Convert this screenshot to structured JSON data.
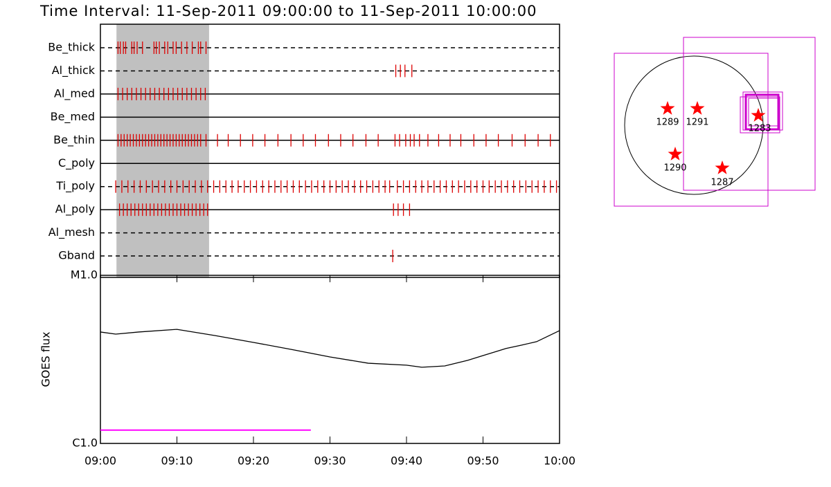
{
  "chart_data": [
    {
      "type": "event",
      "title": "Time Interval: 11-Sep-2011 09:00:00 to 11-Sep-2011 10:00:00",
      "xlim": [
        0,
        60
      ],
      "highlight": [
        2.1,
        14.2
      ],
      "series": [
        {
          "name": "Be_thick",
          "color": "#dd0000",
          "dashed": true,
          "x": [
            2.3,
            2.6,
            3.0,
            3.3,
            4.1,
            4.4,
            4.8,
            5.5,
            7.0,
            7.3,
            7.7,
            8.4,
            8.8,
            9.5,
            9.9,
            10.6,
            11.3,
            12.0,
            12.8,
            13.1,
            13.8
          ]
        },
        {
          "name": "Al_thick",
          "color": "#dd0000",
          "dashed": true,
          "x": [
            38.6,
            39.2,
            39.8,
            40.7
          ]
        },
        {
          "name": "Al_med",
          "color": "#dd0000",
          "dashed": false,
          "x": [
            2.3,
            2.9,
            3.5,
            4.1,
            4.7,
            5.3,
            5.9,
            6.5,
            7.1,
            7.7,
            8.3,
            8.9,
            9.5,
            10.1,
            10.7,
            11.3,
            11.9,
            12.5,
            13.1,
            13.7
          ]
        },
        {
          "name": "Be_med",
          "color": "#dd0000",
          "dashed": false,
          "x": []
        },
        {
          "name": "Be_thin",
          "color": "#dd0000",
          "dashed": false,
          "x": [
            2.3,
            2.7,
            3.1,
            3.5,
            3.9,
            4.3,
            4.7,
            5.1,
            5.5,
            5.9,
            6.3,
            6.7,
            7.1,
            7.5,
            7.9,
            8.3,
            8.7,
            9.1,
            9.5,
            9.9,
            10.3,
            10.7,
            11.1,
            11.5,
            11.9,
            12.3,
            12.7,
            13.1,
            13.8,
            15.3,
            16.7,
            18.3,
            19.9,
            21.5,
            23.2,
            24.9,
            26.5,
            28.1,
            29.8,
            31.4,
            33.0,
            34.7,
            36.3,
            38.5,
            39.1,
            39.9,
            40.5,
            41.0,
            41.7,
            42.8,
            44.2,
            45.7,
            47.1,
            48.8,
            50.4,
            52.0,
            53.8,
            55.5,
            57.2,
            58.8
          ]
        },
        {
          "name": "C_poly",
          "color": "#dd0000",
          "dashed": false,
          "x": []
        },
        {
          "name": "Ti_poly",
          "color": "#dd0000",
          "dashed": true,
          "x": [
            2.0,
            2.8,
            3.6,
            4.4,
            5.2,
            6.0,
            6.8,
            7.6,
            8.4,
            9.2,
            10.0,
            10.8,
            11.6,
            12.4,
            13.2,
            14.0,
            14.8,
            15.6,
            16.4,
            17.2,
            18.0,
            18.8,
            19.6,
            20.4,
            21.2,
            22.0,
            22.8,
            23.6,
            24.4,
            25.2,
            26.0,
            26.8,
            27.6,
            28.4,
            29.2,
            30.0,
            30.8,
            31.6,
            32.4,
            33.2,
            34.0,
            34.8,
            35.6,
            36.4,
            37.2,
            37.8,
            38.8,
            39.6,
            40.4,
            41.2,
            42.0,
            42.8,
            43.6,
            44.4,
            45.2,
            46.0,
            46.8,
            47.6,
            48.4,
            49.2,
            50.0,
            50.8,
            51.6,
            52.4,
            53.2,
            54.0,
            54.8,
            55.6,
            56.4,
            57.2,
            58.0,
            58.8,
            59.6
          ]
        },
        {
          "name": "Al_poly",
          "color": "#dd0000",
          "dashed": false,
          "x": [
            2.5,
            3.0,
            3.5,
            4.0,
            4.5,
            5.0,
            5.5,
            6.0,
            6.5,
            7.0,
            7.5,
            8.0,
            8.5,
            9.0,
            9.5,
            10.0,
            10.5,
            11.0,
            11.5,
            12.0,
            12.5,
            13.0,
            13.5,
            14.0,
            38.3,
            38.9,
            39.6,
            40.4
          ]
        },
        {
          "name": "Al_mesh",
          "color": "#dd0000",
          "dashed": true,
          "x": []
        },
        {
          "name": "Gband",
          "color": "#dd0000",
          "dashed": true,
          "x": [
            38.2
          ]
        }
      ]
    },
    {
      "type": "line",
      "y_label": "GOES flux",
      "log_scale": true,
      "xlim": [
        0,
        60
      ],
      "xticks": [
        {
          "value": 0,
          "label": "09:00"
        },
        {
          "value": 10,
          "label": "09:10"
        },
        {
          "value": 20,
          "label": "09:20"
        },
        {
          "value": 30,
          "label": "09:30"
        },
        {
          "value": 40,
          "label": "09:40"
        },
        {
          "value": 50,
          "label": "09:50"
        },
        {
          "value": 60,
          "label": "10:00"
        }
      ],
      "ylim": [
        1e-06,
        1e-05
      ],
      "yticks": [
        {
          "value": 1e-06,
          "label": "C1.0"
        },
        {
          "value": 1e-05,
          "label": "M1.0"
        }
      ],
      "x": [
        0,
        2,
        5,
        10,
        15,
        20,
        25,
        30,
        35,
        40,
        42,
        45,
        48,
        50,
        53,
        55,
        57,
        60
      ],
      "values": [
        4.6e-06,
        4.47e-06,
        4.6e-06,
        4.77e-06,
        4.38e-06,
        3.99e-06,
        3.62e-06,
        3.27e-06,
        3e-06,
        2.92e-06,
        2.84e-06,
        2.89e-06,
        3.12e-06,
        3.33e-06,
        3.67e-06,
        3.84e-06,
        4.03e-06,
        4.69e-06
      ],
      "color": "#000000",
      "threshold": {
        "value": 1.2e-06,
        "x": [
          0,
          27.5
        ],
        "color": "#ff00ff"
      }
    }
  ],
  "map": {
    "regions": [
      "1289",
      "1291",
      "1283",
      "1290",
      "1287"
    ],
    "marker_color": "#ff0000",
    "fov_color": "#cc00cc"
  }
}
